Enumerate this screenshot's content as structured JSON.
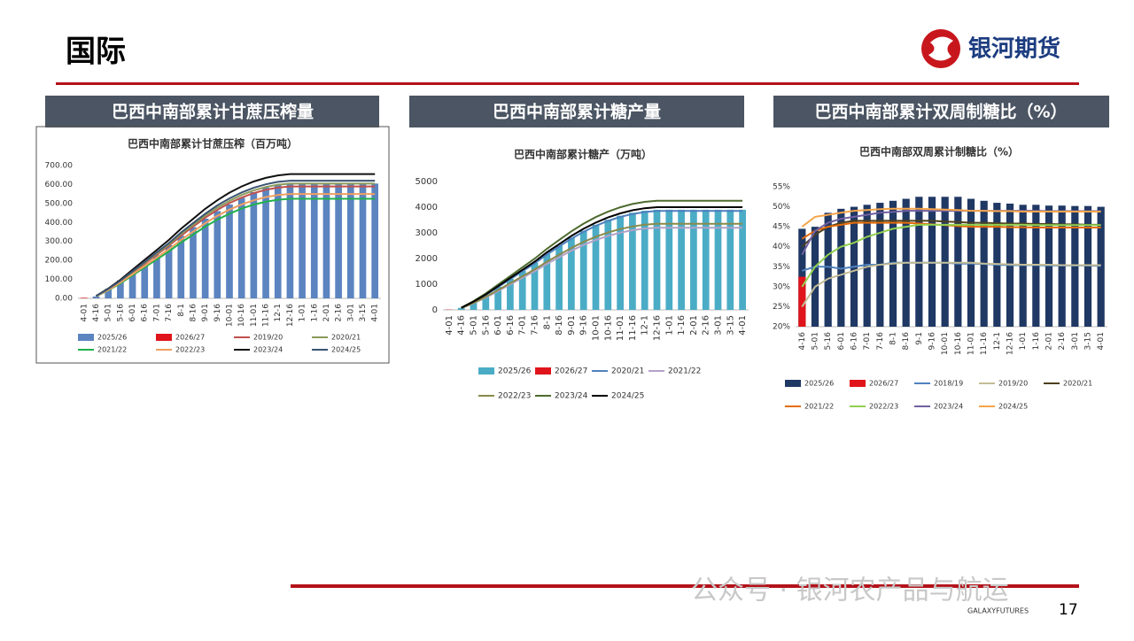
{
  "page": {
    "title": "国际",
    "logo": "银河期货",
    "panels": [
      "巴西中南部累计甘蔗压榨量",
      "巴西中南部累计糖产量",
      "巴西中南部累计双周制糖比（%）"
    ],
    "watermark": "公众号 · 银河农产品与航运",
    "brand": "GALAXYFUTURES",
    "page_number": "17"
  },
  "chart_data": [
    {
      "type": "combo",
      "title": "巴西中南部累计甘蔗压榨（百万吨）",
      "grid": false,
      "categories": [
        "4-01",
        "4-16",
        "5-01",
        "5-16",
        "6-01",
        "6-16",
        "7-01",
        "7-16",
        "8-1",
        "8-16",
        "9-01",
        "9-16",
        "10-01",
        "10-16",
        "11-01",
        "11-16",
        "12-1",
        "12-16",
        "1-01",
        "1-16",
        "2-01",
        "2-16",
        "3-01",
        "3-15",
        "4-01"
      ],
      "ylim": [
        0,
        700
      ],
      "yticks": [
        {
          "value": 0,
          "label": "0.00"
        },
        {
          "value": 100,
          "label": "100.00"
        },
        {
          "value": 200,
          "label": "200.00"
        },
        {
          "value": 300,
          "label": "300.00"
        },
        {
          "value": 400,
          "label": "400.00"
        },
        {
          "value": 500,
          "label": "500.00"
        },
        {
          "value": 600,
          "label": "600.00"
        },
        {
          "value": 700,
          "label": "700.00"
        }
      ],
      "series": [
        {
          "name": "2025/26",
          "type": "bar",
          "color": "#5b84c0",
          "values": [
            null,
            10,
            50,
            95,
            140,
            185,
            230,
            280,
            330,
            375,
            420,
            460,
            495,
            530,
            560,
            585,
            600,
            605,
            605,
            605,
            605,
            605,
            605,
            605,
            605
          ]
        },
        {
          "name": "2026/27",
          "type": "bar",
          "color": "#e0151b",
          "values": [
            3,
            null,
            null,
            null,
            null,
            null,
            null,
            null,
            null,
            null,
            null,
            null,
            null,
            null,
            null,
            null,
            null,
            null,
            null,
            null,
            null,
            null,
            null,
            null,
            null
          ]
        },
        {
          "name": "2019/20",
          "type": "line",
          "color": "#c0504d",
          "values": [
            null,
            12,
            47,
            89,
            136,
            183,
            230,
            277,
            330,
            378,
            425,
            466,
            502,
            531,
            555,
            572,
            584,
            590,
            590,
            590,
            590,
            590,
            590,
            590,
            590
          ]
        },
        {
          "name": "2020/21",
          "type": "line",
          "color": "#8a9a5b",
          "values": [
            null,
            12,
            48,
            91,
            139,
            188,
            236,
            284,
            339,
            387,
            436,
            478,
            514,
            545,
            569,
            587,
            599,
            605,
            605,
            605,
            605,
            605,
            605,
            605,
            605
          ]
        },
        {
          "name": "2021/22",
          "type": "line",
          "color": "#22b04b",
          "values": [
            null,
            11,
            42,
            79,
            121,
            163,
            205,
            247,
            294,
            336,
            378,
            415,
            446,
            473,
            494,
            509,
            520,
            525,
            525,
            525,
            525,
            525,
            525,
            525,
            525
          ]
        },
        {
          "name": "2022/23",
          "type": "line",
          "color": "#f0a060",
          "values": [
            null,
            11,
            44,
            83,
            127,
            171,
            215,
            259,
            308,
            352,
            396,
            435,
            468,
            495,
            517,
            534,
            545,
            550,
            550,
            550,
            550,
            550,
            550,
            550,
            550
          ]
        },
        {
          "name": "2023/24",
          "type": "line",
          "color": "#111111",
          "values": [
            null,
            13,
            52,
            98,
            151,
            203,
            255,
            308,
            367,
            419,
            472,
            517,
            557,
            590,
            616,
            635,
            648,
            655,
            655,
            655,
            655,
            655,
            655,
            655,
            655
          ]
        },
        {
          "name": "2024/25",
          "type": "line",
          "color": "#3b5372",
          "values": [
            null,
            12,
            50,
            93,
            143,
            192,
            242,
            291,
            347,
            397,
            446,
            490,
            527,
            558,
            583,
            601,
            614,
            620,
            620,
            620,
            620,
            620,
            620,
            620,
            620
          ]
        }
      ]
    },
    {
      "type": "combo",
      "title": "巴西中南部累计糖产（万吨）",
      "grid": false,
      "categories": [
        "4-01",
        "4-16",
        "5-01",
        "5-16",
        "6-01",
        "6-16",
        "7-01",
        "7-16",
        "8-1",
        "8-16",
        "9-01",
        "9-16",
        "10-01",
        "10-16",
        "11-01",
        "11-16",
        "12-1",
        "12-16",
        "1-01",
        "1-16",
        "2-01",
        "2-16",
        "3-01",
        "3-15",
        "4-01"
      ],
      "ylim": [
        0,
        5000
      ],
      "yticks": [
        0,
        1000,
        2000,
        3000,
        4000,
        5000
      ],
      "series": [
        {
          "name": "2025/26",
          "type": "bar",
          "color": "#4bacc6",
          "values": [
            null,
            78,
            312,
            585,
            897,
            1209,
            1521,
            1833,
            2184,
            2496,
            2808,
            3081,
            3315,
            3510,
            3666,
            3783,
            3861,
            3900,
            3900,
            3900,
            3900,
            3900,
            3900,
            3900,
            3900
          ]
        },
        {
          "name": "2026/27",
          "type": "bar",
          "color": "#e0151b",
          "values": [
            10,
            null,
            null,
            null,
            null,
            null,
            null,
            null,
            null,
            null,
            null,
            null,
            null,
            null,
            null,
            null,
            null,
            null,
            null,
            null,
            null,
            null,
            null,
            null,
            null
          ]
        },
        {
          "name": "2020/21",
          "type": "line",
          "color": "#4f81bd",
          "values": [
            null,
            77,
            308,
            578,
            886,
            1194,
            1502,
            1810,
            2156,
            2464,
            2772,
            3042,
            3273,
            3465,
            3619,
            3735,
            3812,
            3850,
            3850,
            3850,
            3850,
            3850,
            3850,
            3850,
            3850
          ]
        },
        {
          "name": "2021/22",
          "type": "line",
          "color": "#b3a2c7",
          "values": [
            null,
            64,
            256,
            480,
            736,
            992,
            1248,
            1504,
            1792,
            2048,
            2304,
            2528,
            2720,
            2880,
            3008,
            3104,
            3168,
            3200,
            3200,
            3200,
            3200,
            3200,
            3200,
            3200,
            3200
          ]
        },
        {
          "name": "2022/23",
          "type": "line",
          "color": "#8a8a4b",
          "values": [
            null,
            67,
            268,
            503,
            771,
            1039,
            1307,
            1575,
            1876,
            2144,
            2412,
            2647,
            2848,
            3015,
            3149,
            3250,
            3317,
            3350,
            3350,
            3350,
            3350,
            3350,
            3350,
            3350,
            3350
          ]
        },
        {
          "name": "2023/24",
          "type": "line",
          "color": "#4e6b2e",
          "values": [
            null,
            85,
            340,
            638,
            978,
            1318,
            1658,
            1998,
            2380,
            2720,
            3060,
            3358,
            3613,
            3825,
            3995,
            4123,
            4208,
            4250,
            4250,
            4250,
            4250,
            4250,
            4250,
            4250,
            4250
          ]
        },
        {
          "name": "2024/25",
          "type": "line",
          "color": "#000000",
          "values": [
            null,
            80,
            320,
            600,
            920,
            1240,
            1560,
            1880,
            2240,
            2560,
            2880,
            3160,
            3400,
            3600,
            3760,
            3880,
            3960,
            4000,
            4000,
            4000,
            4000,
            4000,
            4000,
            4000,
            4000
          ]
        }
      ]
    },
    {
      "type": "combo",
      "title": "巴西中南部双周累计制糖比（%）",
      "grid": false,
      "categories": [
        "4-16",
        "5-01",
        "5-16",
        "6-01",
        "6-16",
        "7-01",
        "7-16",
        "8-1",
        "8-16",
        "9-1",
        "9-16",
        "10-01",
        "10-16",
        "11-01",
        "11-16",
        "12-1",
        "12-16",
        "1-01",
        "1-16",
        "2-01",
        "2-16",
        "3-01",
        "3-15",
        "4-01"
      ],
      "ylim": [
        20,
        55
      ],
      "yticks": [
        {
          "value": 20,
          "label": "20%"
        },
        {
          "value": 25,
          "label": "25%"
        },
        {
          "value": 30,
          "label": "30%"
        },
        {
          "value": 35,
          "label": "35%"
        },
        {
          "value": 40,
          "label": "40%"
        },
        {
          "value": 45,
          "label": "45%"
        },
        {
          "value": 50,
          "label": "50%"
        },
        {
          "value": 55,
          "label": "55%"
        }
      ],
      "series": [
        {
          "name": "2025/26",
          "type": "bar",
          "color": "#1f3864",
          "values": [
            44.5,
            45,
            48.5,
            49.5,
            50,
            50.5,
            51,
            51.5,
            52,
            52.5,
            52.5,
            52.5,
            52.5,
            52,
            51.5,
            51,
            50.8,
            50.5,
            50.5,
            50.3,
            50.3,
            50.2,
            50.2,
            50
          ]
        },
        {
          "name": "2026/27",
          "type": "bar",
          "color": "#e0151b",
          "values": [
            32.5,
            null,
            null,
            null,
            null,
            null,
            null,
            null,
            null,
            null,
            null,
            null,
            null,
            null,
            null,
            null,
            null,
            null,
            null,
            null,
            null,
            null,
            null,
            null
          ]
        },
        {
          "name": "2018/19",
          "type": "line",
          "color": "#4f81bd",
          "values": [
            34,
            35,
            35,
            34.5,
            35,
            35.5,
            35.5,
            36,
            36,
            36,
            36,
            36,
            35.8,
            35.8,
            35.7,
            35.5,
            35.4,
            35.4,
            35.4,
            35.3,
            35.3,
            35.3,
            35.3,
            35.2
          ]
        },
        {
          "name": "2019/20",
          "type": "line",
          "color": "#c4bd97",
          "values": [
            25,
            30,
            32,
            33,
            34,
            35,
            35.5,
            35.8,
            36,
            36,
            36,
            36,
            36,
            36,
            35.8,
            35.7,
            35.6,
            35.5,
            35.5,
            35.5,
            35.4,
            35.4,
            35.4,
            35.4
          ]
        },
        {
          "name": "2020/21",
          "type": "line",
          "color": "#4d4020",
          "values": [
            40,
            43,
            45,
            46,
            46.5,
            46.5,
            46.5,
            46.5,
            46.5,
            46.5,
            46.5,
            46.3,
            46.2,
            46,
            46,
            45.9,
            45.8,
            45.8,
            45.7,
            45.7,
            45.6,
            45.6,
            45.5,
            45.5
          ]
        },
        {
          "name": "2021/22",
          "type": "line",
          "color": "#e46c0a",
          "values": [
            42,
            44,
            45,
            45.5,
            46,
            46,
            46,
            46,
            46,
            45.8,
            45.6,
            45.4,
            45.2,
            45,
            45,
            45,
            44.9,
            44.9,
            44.8,
            44.8,
            44.8,
            44.8,
            44.8,
            44.8
          ]
        },
        {
          "name": "2022/23",
          "type": "line",
          "color": "#92d050",
          "values": [
            30,
            35,
            38,
            40,
            41,
            42.5,
            43.5,
            44.5,
            45,
            45.5,
            45.5,
            45.5,
            45.5,
            45.5,
            45.5,
            45.5,
            45.5,
            45.5,
            45.4,
            45.4,
            45.4,
            45.4,
            45.4,
            45.4
          ]
        },
        {
          "name": "2023/24",
          "type": "line",
          "color": "#7060a0",
          "values": [
            38,
            44,
            46,
            47,
            47.5,
            48,
            48.5,
            48.7,
            49,
            49,
            49,
            49,
            49,
            49,
            49,
            49,
            49,
            49,
            49,
            48.9,
            48.9,
            48.9,
            48.9,
            48.9
          ]
        },
        {
          "name": "2024/25",
          "type": "line",
          "color": "#f6a54a",
          "values": [
            45,
            47.5,
            48,
            48.5,
            49,
            49.2,
            49.4,
            49.5,
            49.5,
            49.5,
            49.4,
            49.3,
            49.2,
            49,
            49,
            48.9,
            48.9,
            48.8,
            48.8,
            48.8,
            48.8,
            48.8,
            48.8,
            48.8
          ]
        }
      ]
    }
  ]
}
